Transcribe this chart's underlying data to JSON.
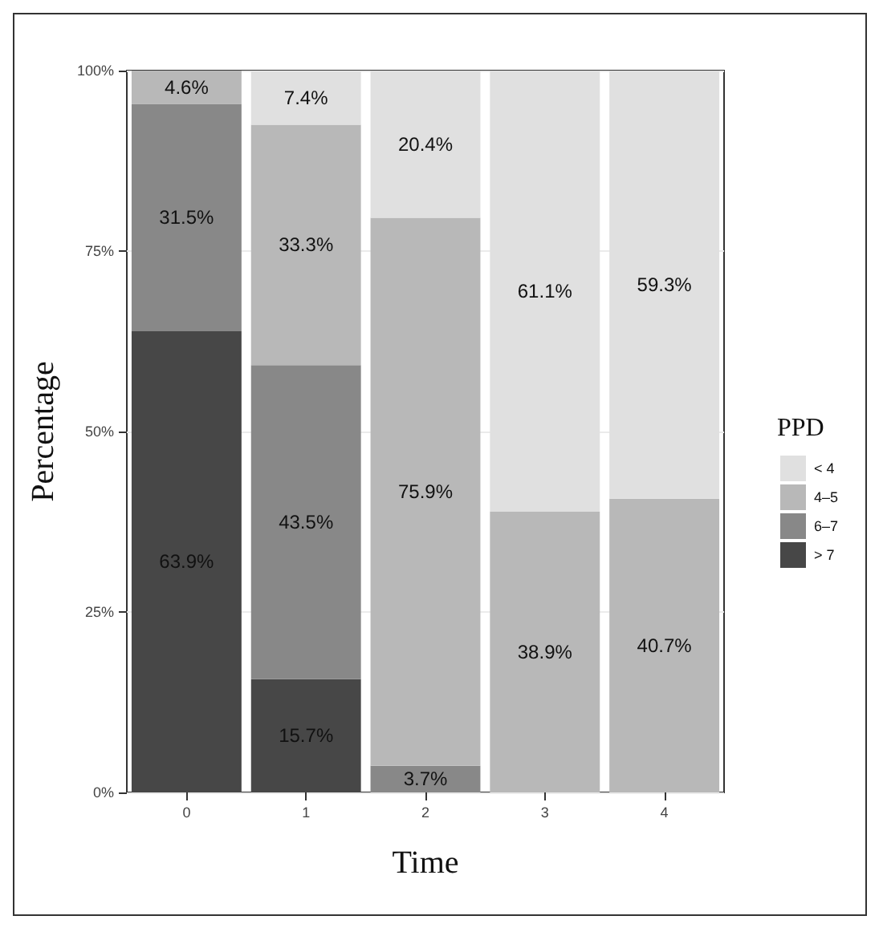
{
  "chart_data": {
    "type": "bar",
    "stacked": true,
    "xlabel": "Time",
    "ylabel": "Percentage",
    "legend_title": "PPD",
    "categories": [
      "0",
      "1",
      "2",
      "3",
      "4"
    ],
    "series": [
      {
        "name": "> 7",
        "color": "#474747",
        "values": [
          63.9,
          15.7,
          0,
          0,
          0
        ],
        "value_labels": [
          "63.9%",
          "15.7%",
          null,
          null,
          null
        ]
      },
      {
        "name": "6–7",
        "color": "#888888",
        "values": [
          31.5,
          43.5,
          3.7,
          0,
          0
        ],
        "value_labels": [
          "31.5%",
          "43.5%",
          "3.7%",
          null,
          null
        ]
      },
      {
        "name": "4–5",
        "color": "#b8b8b8",
        "values": [
          4.6,
          33.3,
          75.9,
          38.9,
          40.7
        ],
        "value_labels": [
          "4.6%",
          "33.3%",
          "75.9%",
          "38.9%",
          "40.7%"
        ]
      },
      {
        "name": "< 4",
        "color": "#e0e0e0",
        "values": [
          0,
          7.4,
          20.4,
          61.1,
          59.3
        ],
        "value_labels": [
          null,
          "7.4%",
          "20.4%",
          "61.1%",
          "59.3%"
        ]
      }
    ],
    "ylim": [
      0,
      100
    ],
    "yticks": [
      {
        "value": 0,
        "label": "0%"
      },
      {
        "value": 25,
        "label": "25%"
      },
      {
        "value": 50,
        "label": "50%"
      },
      {
        "value": 75,
        "label": "75%"
      },
      {
        "value": 100,
        "label": "100%"
      }
    ],
    "grid": "y",
    "legend": "right"
  }
}
